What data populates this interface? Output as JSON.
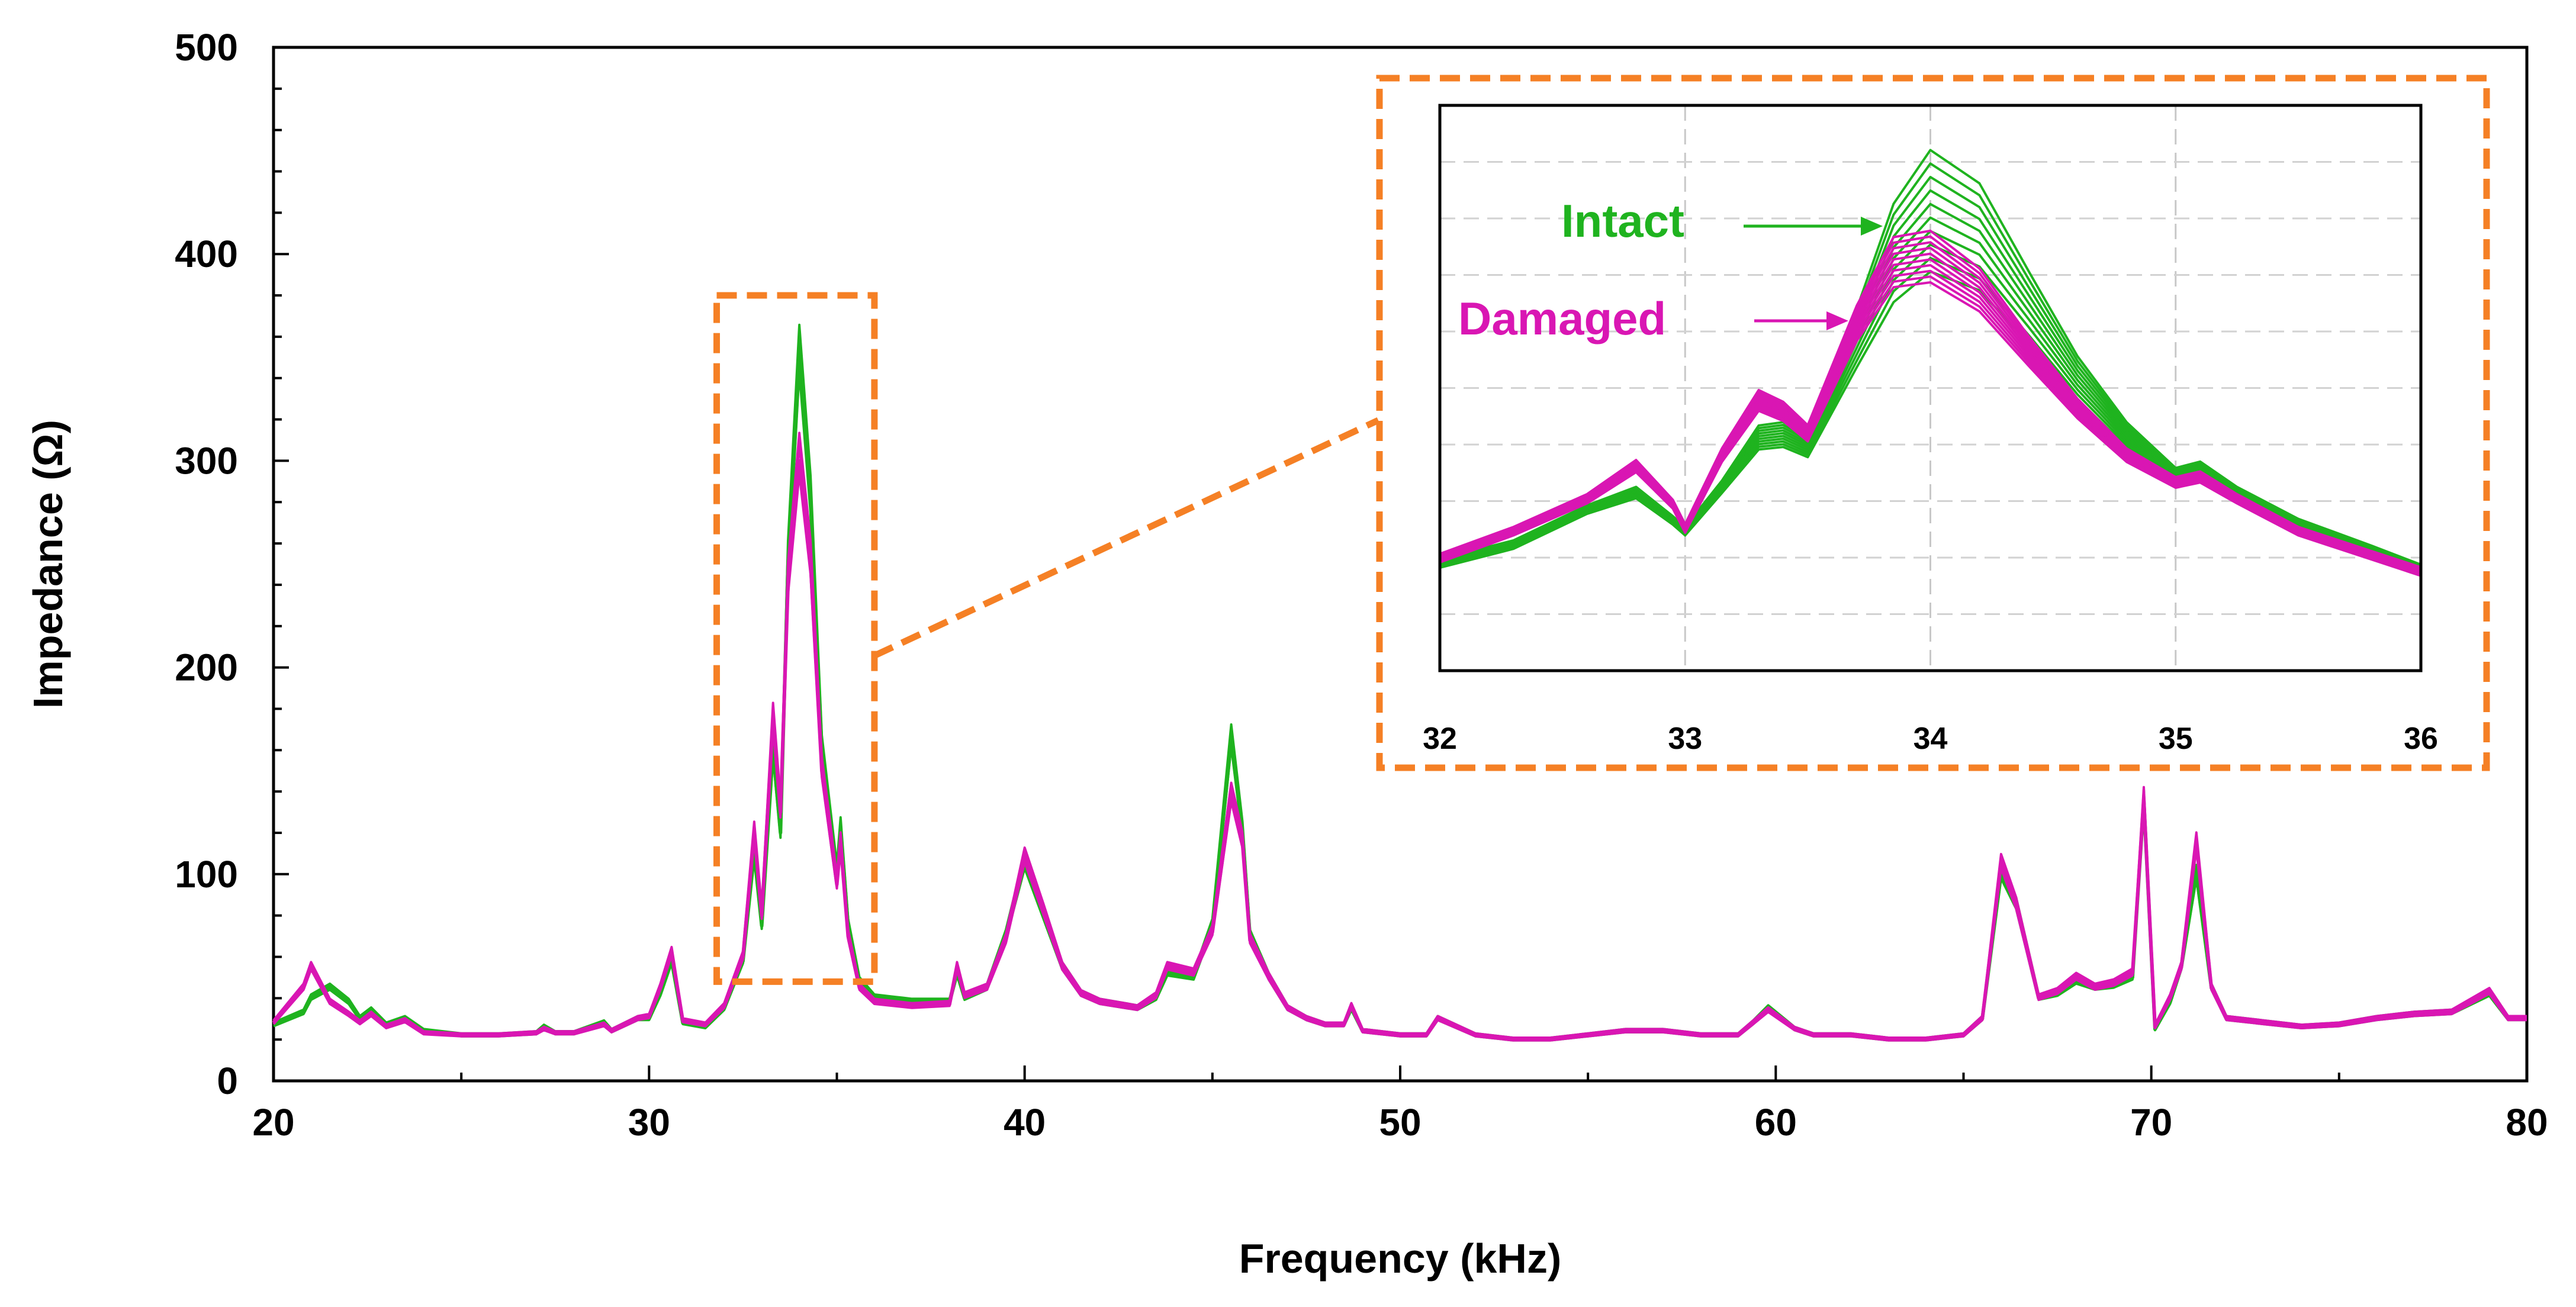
{
  "chart_data": {
    "type": "line",
    "title": "",
    "xlabel": "Frequency (kHz)",
    "ylabel": "Impedance (Ω)",
    "xlim": [
      20,
      80
    ],
    "ylim": [
      0,
      500
    ],
    "x_ticks": [
      "20",
      "30",
      "40",
      "50",
      "60",
      "70",
      "80"
    ],
    "y_ticks": [
      "0",
      "100",
      "200",
      "300",
      "400",
      "500"
    ],
    "grid": false,
    "colors": {
      "intact": "#1fb31f",
      "damaged": "#d916b3",
      "highlight": "#f58025",
      "axis": "#000000",
      "inset_grid": "#c8c8c8"
    },
    "series": [
      {
        "name": "Intact",
        "color": "#1fb31f",
        "x": [
          20,
          20.8,
          21,
          21.5,
          22,
          22.3,
          22.6,
          23,
          23.5,
          24,
          25,
          26,
          27,
          27.2,
          27.5,
          28,
          28.8,
          29,
          29.7,
          30,
          30.3,
          30.6,
          30.9,
          31.5,
          32,
          32.5,
          32.8,
          33,
          33.3,
          33.5,
          33.7,
          34,
          34.3,
          34.6,
          35,
          35.1,
          35.3,
          35.6,
          36,
          36.5,
          37,
          38,
          38.2,
          38.4,
          39,
          39.5,
          40,
          40.5,
          41,
          41.5,
          42,
          43,
          43.5,
          43.8,
          44.5,
          45,
          45.5,
          45.8,
          46,
          46.5,
          47,
          47.5,
          48,
          48.5,
          48.7,
          49,
          50,
          50.7,
          51,
          52,
          53,
          54,
          55,
          56,
          57,
          58,
          59,
          59.4,
          59.8,
          60.5,
          61,
          62,
          63,
          64,
          65,
          65.5,
          66,
          66.4,
          67,
          67.5,
          68,
          68.5,
          69,
          69.5,
          69.8,
          70.1,
          70.5,
          70.8,
          71.2,
          71.6,
          72,
          73,
          74,
          75,
          76,
          77,
          78,
          79,
          79.5,
          80
        ],
        "values": [
          27,
          33,
          40,
          45,
          38,
          30,
          34,
          27,
          30,
          24,
          22,
          22,
          23,
          26,
          23,
          23,
          28,
          24,
          30,
          30,
          42,
          58,
          28,
          26,
          35,
          58,
          110,
          75,
          160,
          120,
          250,
          350,
          280,
          160,
          100,
          122,
          75,
          48,
          40,
          39,
          38,
          38,
          52,
          40,
          45,
          70,
          105,
          80,
          55,
          42,
          38,
          35,
          40,
          52,
          50,
          75,
          165,
          120,
          70,
          50,
          35,
          30,
          27,
          27,
          35,
          24,
          22,
          22,
          30,
          22,
          20,
          20,
          22,
          24,
          24,
          22,
          22,
          28,
          35,
          25,
          22,
          22,
          20,
          20,
          22,
          30,
          100,
          85,
          40,
          42,
          48,
          45,
          46,
          50,
          135,
          25,
          38,
          55,
          100,
          45,
          30,
          28,
          26,
          27,
          30,
          32,
          33,
          42,
          30,
          30
        ]
      },
      {
        "name": "Damaged",
        "color": "#d916b3",
        "x": [
          20,
          20.8,
          21,
          21.5,
          22,
          22.3,
          22.6,
          23,
          23.5,
          24,
          25,
          26,
          27,
          27.2,
          27.5,
          28,
          28.8,
          29,
          29.7,
          30,
          30.3,
          30.6,
          30.9,
          31.5,
          32,
          32.5,
          32.8,
          33,
          33.3,
          33.5,
          33.7,
          34,
          34.3,
          34.6,
          35,
          35.1,
          35.3,
          35.6,
          36,
          36.5,
          37,
          38,
          38.2,
          38.4,
          39,
          39.5,
          40,
          40.5,
          41,
          41.5,
          42,
          43,
          43.5,
          43.8,
          44.5,
          45,
          45.5,
          45.8,
          46,
          46.5,
          47,
          47.5,
          48,
          48.5,
          48.7,
          49,
          50,
          50.7,
          51,
          52,
          53,
          54,
          55,
          56,
          57,
          58,
          59,
          59.4,
          59.8,
          60.5,
          61,
          62,
          63,
          64,
          65,
          65.5,
          66,
          66.4,
          67,
          67.5,
          68,
          68.5,
          69,
          69.5,
          69.8,
          70.1,
          70.5,
          70.8,
          71.2,
          71.6,
          72,
          73,
          74,
          75,
          76,
          77,
          78,
          79,
          79.5,
          80
        ],
        "values": [
          28,
          45,
          55,
          38,
          32,
          28,
          32,
          26,
          29,
          23,
          22,
          22,
          23,
          25,
          23,
          23,
          27,
          24,
          30,
          31,
          45,
          62,
          29,
          27,
          36,
          60,
          120,
          80,
          175,
          130,
          240,
          300,
          250,
          150,
          95,
          115,
          70,
          45,
          38,
          37,
          36,
          37,
          55,
          41,
          45,
          68,
          108,
          82,
          55,
          42,
          38,
          35,
          41,
          55,
          52,
          72,
          138,
          115,
          68,
          50,
          35,
          30,
          27,
          27,
          36,
          24,
          22,
          22,
          30,
          22,
          20,
          20,
          22,
          24,
          24,
          22,
          22,
          28,
          34,
          25,
          22,
          22,
          20,
          20,
          22,
          30,
          105,
          85,
          40,
          43,
          50,
          45,
          47,
          52,
          136,
          26,
          40,
          55,
          115,
          45,
          30,
          28,
          26,
          27,
          30,
          32,
          33,
          43,
          30,
          30
        ]
      }
    ],
    "highlight_box": {
      "x_range": [
        31.8,
        36
      ],
      "y_range": [
        48,
        380
      ]
    },
    "inset": {
      "xlim": [
        32,
        36
      ],
      "x_ticks": [
        "32",
        "33",
        "34",
        "35",
        "36"
      ],
      "grid": true,
      "series": [
        {
          "name": "Intact",
          "color": "#1fb31f",
          "x": [
            32,
            32.3,
            32.6,
            32.8,
            32.95,
            33,
            33.15,
            33.3,
            33.4,
            33.5,
            33.7,
            33.85,
            34,
            34.2,
            34.4,
            34.6,
            34.8,
            35,
            35.1,
            35.25,
            35.5,
            35.8,
            36
          ],
          "values": [
            40,
            47,
            60,
            66,
            56,
            52,
            68,
            85,
            86,
            82,
            118,
            145,
            158,
            150,
            128,
            105,
            86,
            72,
            74,
            66,
            55,
            45,
            38
          ],
          "peak_range": [
            150,
            192
          ]
        },
        {
          "name": "Damaged",
          "color": "#d916b3",
          "x": [
            32,
            32.3,
            32.6,
            32.8,
            32.95,
            33,
            33.15,
            33.3,
            33.4,
            33.5,
            33.7,
            33.85,
            34,
            34.2,
            34.4,
            34.6,
            34.8,
            35,
            35.1,
            35.25,
            35.5,
            35.8,
            36
          ],
          "values": [
            42,
            52,
            64,
            76,
            62,
            53,
            80,
            100,
            96,
            88,
            128,
            150,
            152,
            140,
            118,
            97,
            80,
            70,
            72,
            64,
            52,
            43,
            37
          ],
          "peak_range": [
            146,
            162
          ]
        }
      ]
    },
    "annotations": {
      "intact_label": "Intact",
      "damaged_label": "Damaged"
    }
  }
}
